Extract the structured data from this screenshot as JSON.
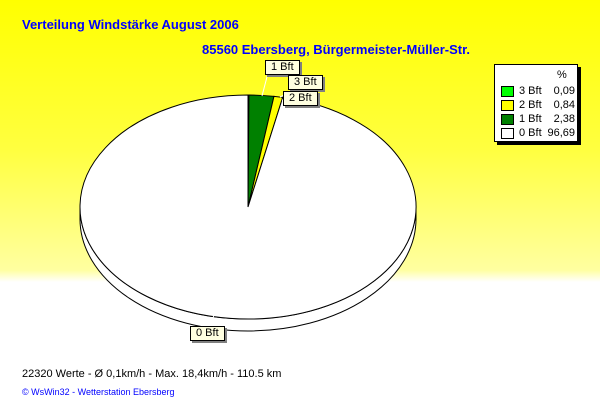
{
  "title": "Verteilung Windstärke  August 2006",
  "subtitle": "85560 Ebersberg, Bürgermeister-Müller-Str.",
  "chart_data": {
    "type": "pie",
    "title": "Verteilung Windstärke  August 2006",
    "subtitle": "85560 Ebersberg, Bürgermeister-Müller-Str.",
    "legend_header": "%",
    "legend_position": "top-right",
    "slices": [
      {
        "label": "3 Bft",
        "value": 0.09,
        "color": "#00ff00"
      },
      {
        "label": "2 Bft",
        "value": 0.84,
        "color": "#ffff00"
      },
      {
        "label": "1 Bft",
        "value": 2.38,
        "color": "#008000"
      },
      {
        "label": "0 Bft",
        "value": 96.69,
        "color": "#ffffff"
      }
    ],
    "draw_order": [
      "3 Bft",
      "1 Bft",
      "2 Bft",
      "0 Bft"
    ],
    "legend_values": [
      "0,09",
      "0,84",
      "2,38",
      "96,69"
    ]
  },
  "footer": {
    "stats": "22320 Werte   -   Ø 0,1km/h  -  Max. 18,4km/h   -   110.5 km",
    "credit": "© WsWin32   -   Wetterstation Ebersberg"
  }
}
